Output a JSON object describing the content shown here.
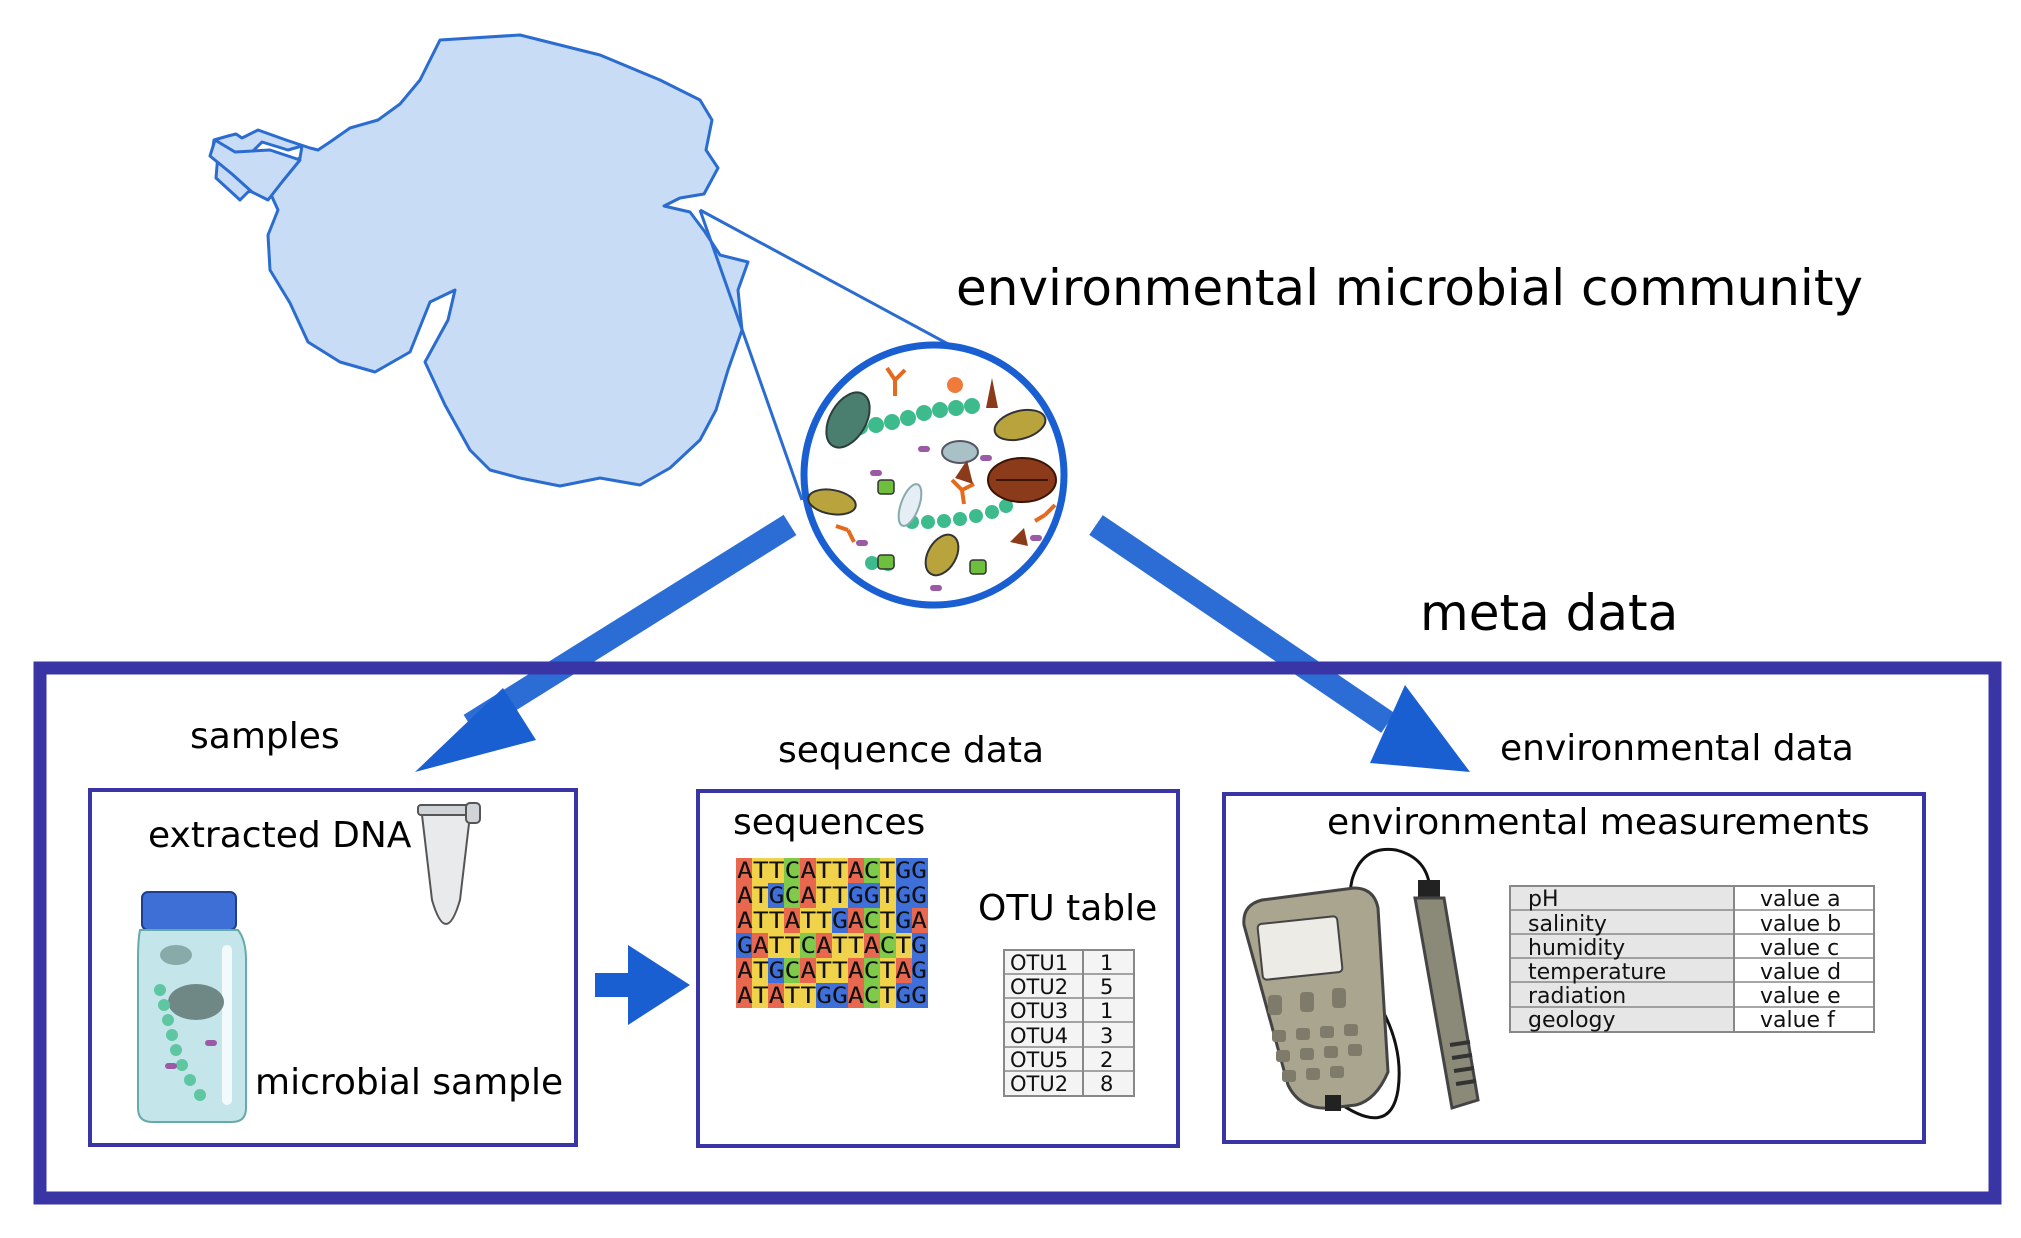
{
  "title": "environmental microbial community",
  "meta_label": "meta data",
  "sections": {
    "samples": {
      "label": "samples",
      "extracted_dna": "extracted DNA",
      "microbial_sample": "microbial sample"
    },
    "sequence_data": {
      "label": "sequence data",
      "sequences_label": "sequences",
      "sequences": [
        "ATTCATTACTGG",
        "ATGCATTGGTGG",
        "ATTATTGACTGA",
        "GATTCATTACTG",
        "ATGCATTACTAG",
        "ATATTGGACTGG"
      ],
      "otu_label": "OTU table",
      "otu_rows": [
        {
          "otu": "OTU1",
          "count": "1"
        },
        {
          "otu": "OTU2",
          "count": "5"
        },
        {
          "otu": "OTU3",
          "count": "1"
        },
        {
          "otu": "OTU4",
          "count": "3"
        },
        {
          "otu": "OTU5",
          "count": "2"
        },
        {
          "otu": "OTU2",
          "count": "8"
        }
      ]
    },
    "environmental_data": {
      "label": "environmental data",
      "measurements_label": "environmental measurements",
      "rows": [
        {
          "param": "pH",
          "value": "value a"
        },
        {
          "param": "salinity",
          "value": "value b"
        },
        {
          "param": "humidity",
          "value": "value c"
        },
        {
          "param": "temperature",
          "value": "value d"
        },
        {
          "param": "radiation",
          "value": "value e"
        },
        {
          "param": "geology",
          "value": "value f"
        }
      ]
    }
  },
  "colors": {
    "map_fill": "#c9dcf5",
    "map_stroke": "#2a6ccf",
    "arrow": "#1a5fd1",
    "frame": "#3a35a5",
    "nuc_A": "#e8684f",
    "nuc_T": "#f0d34a",
    "nuc_G": "#3f6fd9",
    "nuc_C": "#7fc94b"
  }
}
